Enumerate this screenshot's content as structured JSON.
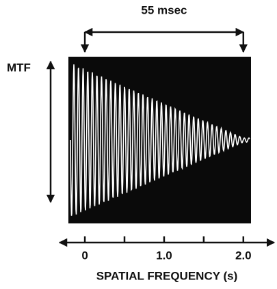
{
  "chart_data": {
    "type": "oscillogram",
    "y_label": "MTF",
    "x_label": "SPATIAL FREQUENCY (s)",
    "annotation": {
      "text": "55 msec",
      "x": [
        0,
        2
      ]
    },
    "xlim": [
      -0.32,
      2.39
    ],
    "xticks": [
      0,
      {
        "value": 1,
        "label": "1.0"
      },
      {
        "value": 2,
        "label": "2.0"
      }
    ],
    "xminor_ticks": [
      0.5,
      1.5
    ],
    "color": "#ffffff"
  }
}
